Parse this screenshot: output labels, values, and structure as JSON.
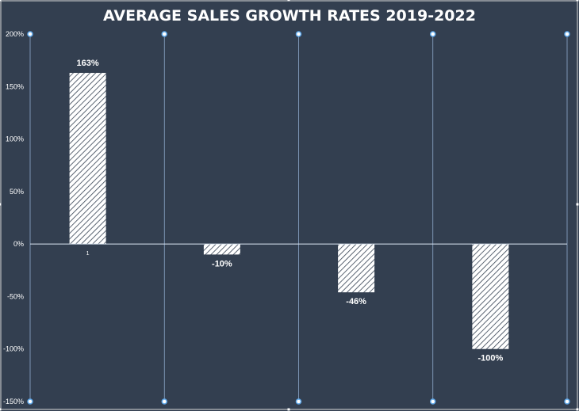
{
  "chart_data": {
    "type": "bar",
    "title": "AVERAGE SALES GROWTH RATES 2019-2022",
    "categories": [
      "1",
      "",
      "",
      ""
    ],
    "values": [
      163,
      -10,
      -46,
      -100
    ],
    "data_labels": [
      "163%",
      "-10%",
      "-46%",
      "-100%"
    ],
    "ylim": [
      -150,
      200
    ],
    "yticks": [
      200,
      150,
      100,
      50,
      0,
      -50,
      -100,
      -150
    ],
    "ytick_labels": [
      "200%",
      "150%",
      "100%",
      "50%",
      "0%",
      "-50%",
      "-100%",
      "-150%"
    ],
    "xlabel": "",
    "ylabel": "",
    "grid": "vertical",
    "legend": "none"
  },
  "colors": {
    "background": "#333f50",
    "bar_fill": "#ffffff",
    "bar_hatch": "#333f50",
    "grid": "#8ea9cc",
    "axis": "#dce6f2",
    "text": "#ffffff",
    "handle": "#5fa8ea"
  }
}
